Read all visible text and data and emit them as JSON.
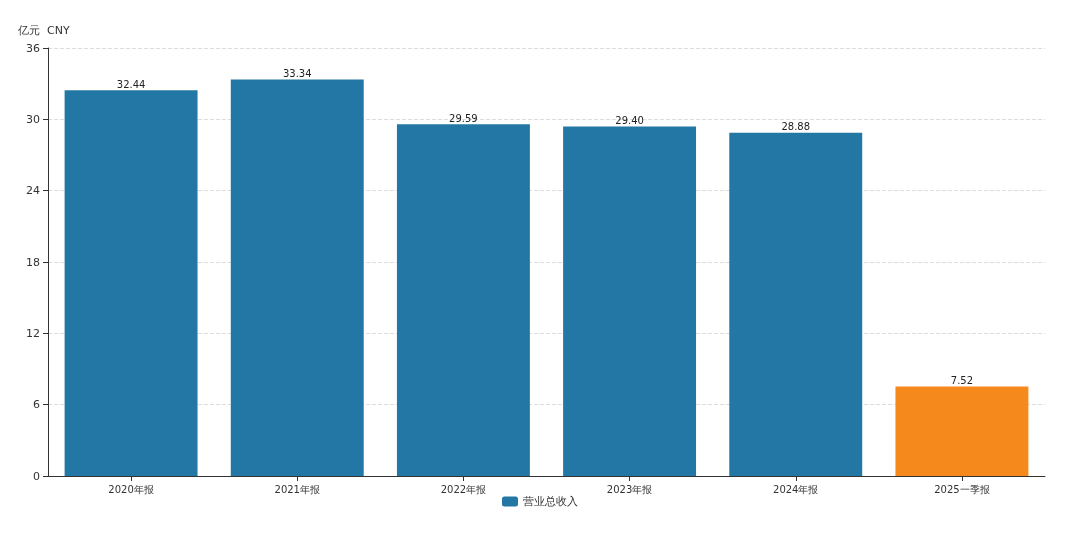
{
  "chart_data": {
    "type": "bar",
    "ylabel": "亿元  CNY",
    "categories": [
      "2020年报",
      "2021年报",
      "2022年报",
      "2023年报",
      "2024年报",
      "2025一季报"
    ],
    "series": [
      {
        "name": "营业总收入",
        "color": "#2277a4",
        "colors": [
          "#2277a4",
          "#2277a4",
          "#2277a4",
          "#2277a4",
          "#2277a4",
          "#f5891b"
        ],
        "values": [
          32.44,
          33.34,
          29.59,
          29.4,
          28.88,
          7.52
        ],
        "value_labels": [
          "32.44",
          "33.34",
          "29.59",
          "29.40",
          "28.88",
          "7.52"
        ]
      }
    ],
    "ylim": [
      0,
      36
    ],
    "yticks": [
      0,
      6,
      12,
      18,
      24,
      30,
      36
    ],
    "grid": "y",
    "legend": "bottom"
  }
}
